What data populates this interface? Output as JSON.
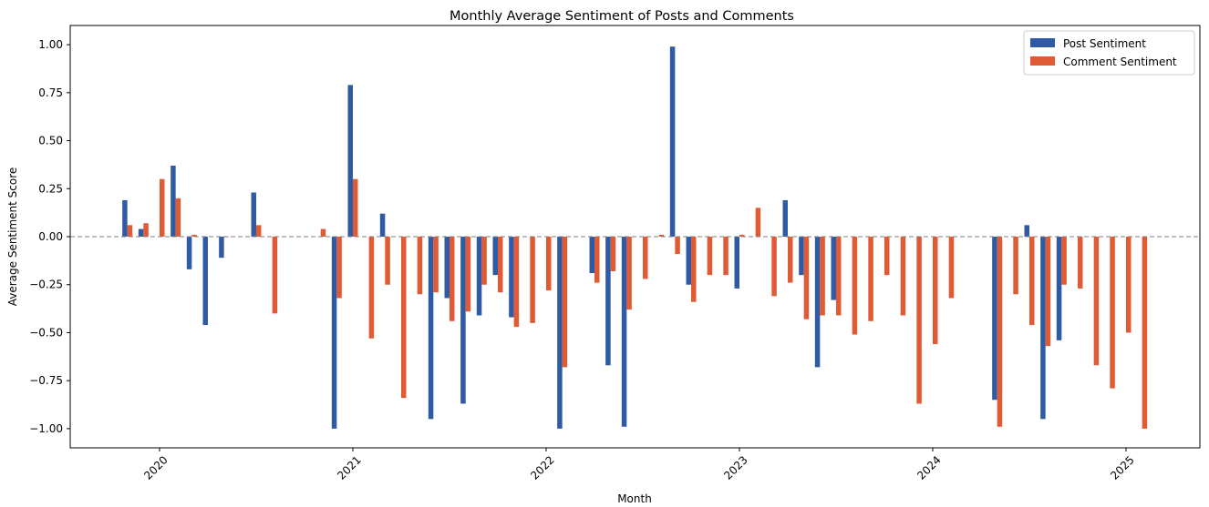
{
  "chart_data": {
    "type": "bar",
    "title": "Monthly Average Sentiment of Posts and Comments",
    "xlabel": "Month",
    "ylabel": "Average Sentiment Score",
    "ylim": [
      -1.1,
      1.1
    ],
    "y_ticks": [
      "−1.00",
      "−0.75",
      "−0.50",
      "−0.25",
      "0.00",
      "0.25",
      "0.50",
      "0.75",
      "1.00"
    ],
    "y_tick_values": [
      -1.0,
      -0.75,
      -0.5,
      -0.25,
      0.0,
      0.25,
      0.5,
      0.75,
      1.0
    ],
    "x_ticks": [
      "2020",
      "2021",
      "2022",
      "2023",
      "2024",
      "2025"
    ],
    "x_tick_rotation_deg": -45,
    "reference_line": {
      "y": 0.0,
      "style": "dashed",
      "color": "#808080"
    },
    "grid": false,
    "legend_position": "top-right",
    "colors": {
      "post": "#2f5ba5",
      "comment": "#e05a33"
    },
    "months": [
      "2019-11",
      "2019-12",
      "2020-01",
      "2020-02",
      "2020-03",
      "2020-04",
      "2020-05",
      "2020-06",
      "2020-07",
      "2020-08",
      "2020-09",
      "2020-10",
      "2020-11",
      "2020-12",
      "2021-01",
      "2021-02",
      "2021-03",
      "2021-04",
      "2021-05",
      "2021-06",
      "2021-07",
      "2021-08",
      "2021-09",
      "2021-10",
      "2021-11",
      "2021-12",
      "2022-01",
      "2022-02",
      "2022-03",
      "2022-04",
      "2022-05",
      "2022-06",
      "2022-07",
      "2022-08",
      "2022-09",
      "2022-10",
      "2022-11",
      "2022-12",
      "2023-01",
      "2023-02",
      "2023-03",
      "2023-04",
      "2023-05",
      "2023-06",
      "2023-07",
      "2023-08",
      "2023-09",
      "2023-10",
      "2023-11",
      "2023-12",
      "2024-01",
      "2024-02",
      "2024-03",
      "2024-04",
      "2024-05",
      "2024-06",
      "2024-07",
      "2024-08",
      "2024-09",
      "2024-10",
      "2024-11",
      "2024-12",
      "2025-01"
    ],
    "series": [
      {
        "name": "Post Sentiment",
        "key": "post",
        "values": [
          0.19,
          0.04,
          null,
          0.37,
          -0.17,
          -0.46,
          -0.11,
          null,
          0.23,
          null,
          null,
          null,
          null,
          -1.0,
          0.79,
          null,
          0.12,
          null,
          null,
          -0.95,
          -0.32,
          -0.87,
          -0.41,
          -0.2,
          -0.42,
          null,
          null,
          -1.0,
          null,
          -0.19,
          -0.67,
          -0.99,
          null,
          null,
          0.99,
          -0.25,
          null,
          null,
          -0.27,
          null,
          null,
          0.19,
          -0.2,
          -0.68,
          -0.33,
          null,
          null,
          null,
          null,
          null,
          null,
          null,
          null,
          null,
          -0.85,
          null,
          0.06,
          -0.95,
          -0.54,
          null,
          null,
          null,
          null
        ]
      },
      {
        "name": "Comment Sentiment",
        "key": "comment",
        "values": [
          0.06,
          0.07,
          0.3,
          0.2,
          0.01,
          null,
          0.0,
          null,
          0.06,
          -0.4,
          null,
          null,
          0.04,
          -0.32,
          0.3,
          -0.53,
          -0.25,
          -0.84,
          -0.3,
          -0.29,
          -0.44,
          -0.39,
          -0.25,
          -0.29,
          -0.47,
          -0.45,
          -0.28,
          -0.68,
          null,
          -0.24,
          -0.18,
          -0.38,
          -0.22,
          0.01,
          -0.09,
          -0.34,
          -0.2,
          -0.2,
          0.01,
          0.15,
          -0.31,
          -0.24,
          -0.43,
          -0.41,
          -0.41,
          -0.51,
          -0.44,
          -0.2,
          -0.41,
          -0.87,
          -0.56,
          -0.32,
          null,
          null,
          -0.99,
          -0.3,
          -0.46,
          -0.57,
          -0.25,
          -0.27,
          -0.67,
          -0.79,
          -0.5
        ]
      }
    ],
    "extra_comment_months": [
      {
        "month": "2025-02",
        "value": -1.0
      }
    ]
  }
}
